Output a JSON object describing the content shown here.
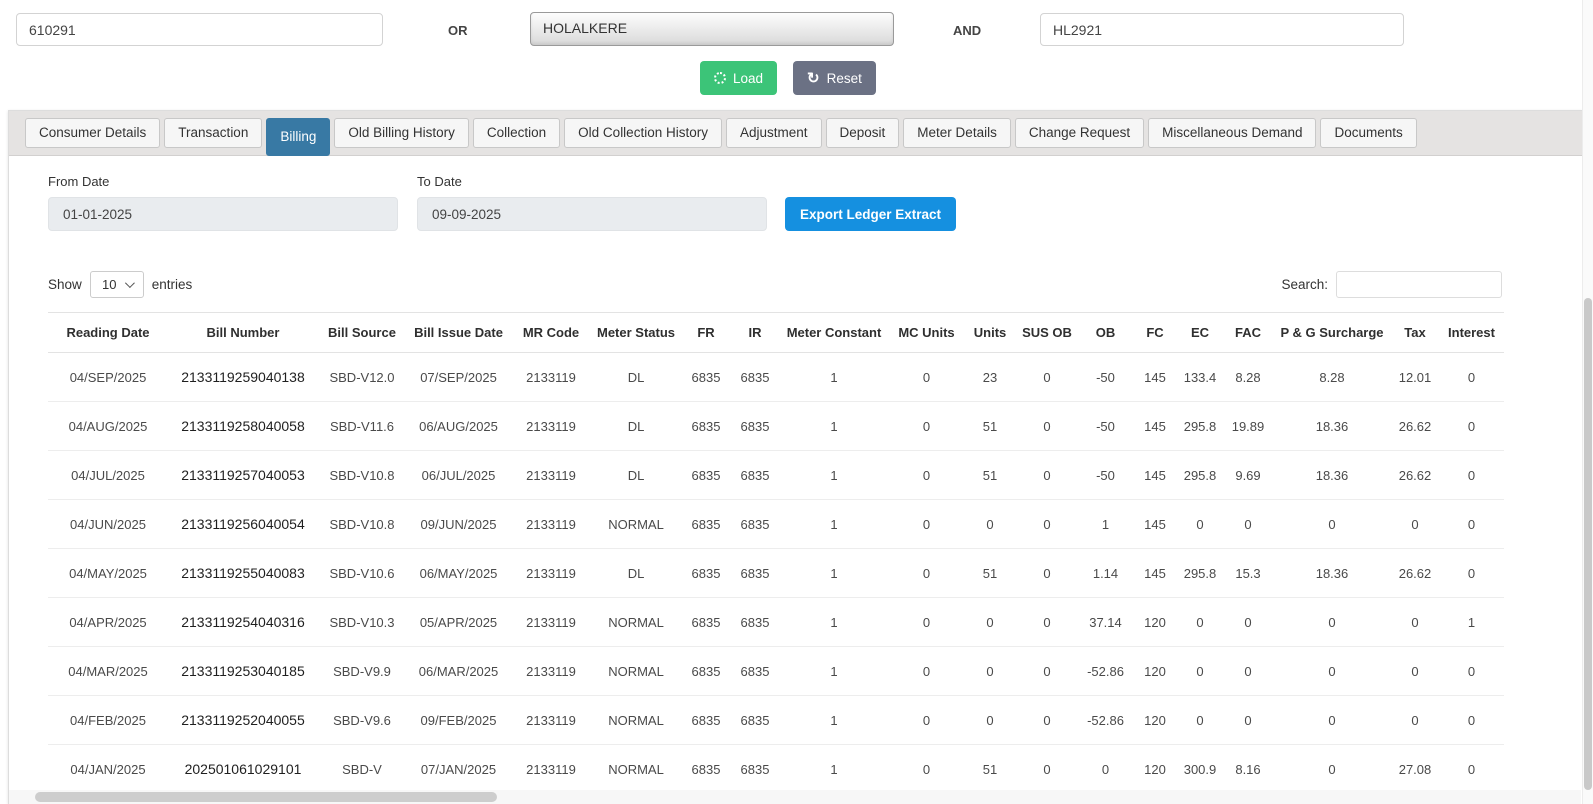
{
  "filters": {
    "consumer_number": "610291",
    "or_label": "OR",
    "office_selected": "HOLALKERE",
    "and_label": "AND",
    "rr_number": "HL2921",
    "load_label": "Load",
    "reset_label": "Reset"
  },
  "tabs": [
    {
      "label": "Consumer Details",
      "active": false
    },
    {
      "label": "Transaction",
      "active": false
    },
    {
      "label": "Billing",
      "active": true
    },
    {
      "label": "Old Billing History",
      "active": false
    },
    {
      "label": "Collection",
      "active": false
    },
    {
      "label": "Old Collection History",
      "active": false
    },
    {
      "label": "Adjustment",
      "active": false
    },
    {
      "label": "Deposit",
      "active": false
    },
    {
      "label": "Meter Details",
      "active": false
    },
    {
      "label": "Change Request",
      "active": false
    },
    {
      "label": "Miscellaneous Demand",
      "active": false
    },
    {
      "label": "Documents",
      "active": false
    }
  ],
  "billing": {
    "from_date_label": "From Date",
    "from_date": "01-01-2025",
    "to_date_label": "To Date",
    "to_date": "09-09-2025",
    "export_label": "Export Ledger Extract",
    "show_label": "Show",
    "page_size": "10",
    "entries_label": "entries",
    "search_label": "Search:",
    "search_value": ""
  },
  "table": {
    "columns": [
      "Reading Date",
      "Bill Number",
      "Bill Source",
      "Bill Issue Date",
      "MR Code",
      "Meter Status",
      "FR",
      "IR",
      "Meter Constant",
      "MC Units",
      "Units",
      "SUS OB",
      "OB",
      "FC",
      "EC",
      "FAC",
      "P & G Surcharge",
      "Tax",
      "Interest"
    ],
    "rows": [
      [
        "04/SEP/2025",
        "2133119259040138",
        "SBD-V12.0",
        "07/SEP/2025",
        "2133119",
        "DL",
        "6835",
        "6835",
        "1",
        "0",
        "23",
        "0",
        "-50",
        "145",
        "133.4",
        "8.28",
        "8.28",
        "12.01",
        "0"
      ],
      [
        "04/AUG/2025",
        "2133119258040058",
        "SBD-V11.6",
        "06/AUG/2025",
        "2133119",
        "DL",
        "6835",
        "6835",
        "1",
        "0",
        "51",
        "0",
        "-50",
        "145",
        "295.8",
        "19.89",
        "18.36",
        "26.62",
        "0"
      ],
      [
        "04/JUL/2025",
        "2133119257040053",
        "SBD-V10.8",
        "06/JUL/2025",
        "2133119",
        "DL",
        "6835",
        "6835",
        "1",
        "0",
        "51",
        "0",
        "-50",
        "145",
        "295.8",
        "9.69",
        "18.36",
        "26.62",
        "0"
      ],
      [
        "04/JUN/2025",
        "2133119256040054",
        "SBD-V10.8",
        "09/JUN/2025",
        "2133119",
        "NORMAL",
        "6835",
        "6835",
        "1",
        "0",
        "0",
        "0",
        "1",
        "145",
        "0",
        "0",
        "0",
        "0",
        "0"
      ],
      [
        "04/MAY/2025",
        "2133119255040083",
        "SBD-V10.6",
        "06/MAY/2025",
        "2133119",
        "DL",
        "6835",
        "6835",
        "1",
        "0",
        "51",
        "0",
        "1.14",
        "145",
        "295.8",
        "15.3",
        "18.36",
        "26.62",
        "0"
      ],
      [
        "04/APR/2025",
        "2133119254040316",
        "SBD-V10.3",
        "05/APR/2025",
        "2133119",
        "NORMAL",
        "6835",
        "6835",
        "1",
        "0",
        "0",
        "0",
        "37.14",
        "120",
        "0",
        "0",
        "0",
        "0",
        "1"
      ],
      [
        "04/MAR/2025",
        "2133119253040185",
        "SBD-V9.9",
        "06/MAR/2025",
        "2133119",
        "NORMAL",
        "6835",
        "6835",
        "1",
        "0",
        "0",
        "0",
        "-52.86",
        "120",
        "0",
        "0",
        "0",
        "0",
        "0"
      ],
      [
        "04/FEB/2025",
        "2133119252040055",
        "SBD-V9.6",
        "09/FEB/2025",
        "2133119",
        "NORMAL",
        "6835",
        "6835",
        "1",
        "0",
        "0",
        "0",
        "-52.86",
        "120",
        "0",
        "0",
        "0",
        "0",
        "0"
      ],
      [
        "04/JAN/2025",
        "202501061029101",
        "SBD-V",
        "07/JAN/2025",
        "2133119",
        "NORMAL",
        "6835",
        "6835",
        "1",
        "0",
        "51",
        "0",
        "0",
        "120",
        "300.9",
        "8.16",
        "0",
        "27.08",
        "0"
      ]
    ]
  }
}
